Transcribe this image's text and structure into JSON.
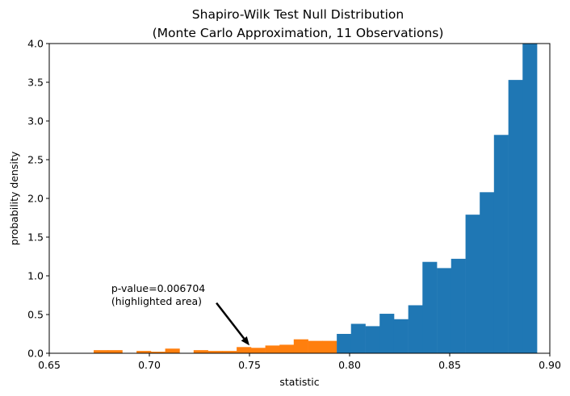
{
  "chart_data": {
    "type": "bar",
    "title": "Shapiro-Wilk Test Null Distribution",
    "subtitle": "(Monte Carlo Approximation, 11 Observations)",
    "xlabel": "statistic",
    "ylabel": "probability density",
    "xlim": [
      0.65,
      0.9
    ],
    "ylim": [
      0,
      4.0
    ],
    "xticks": [
      "0.65",
      "0.70",
      "0.75",
      "0.80",
      "0.85",
      "0.90"
    ],
    "yticks": [
      "0.0",
      "0.5",
      "1.0",
      "1.5",
      "2.0",
      "2.5",
      "3.0",
      "3.5",
      "4.0"
    ],
    "grid": false,
    "bin_width": 0.00714,
    "series": [
      {
        "color": "#ff7f0e",
        "bins": [
          {
            "x": 0.6722,
            "y": 0.04
          },
          {
            "x": 0.6793,
            "y": 0.04
          },
          {
            "x": 0.6936,
            "y": 0.03
          },
          {
            "x": 0.7007,
            "y": 0.02
          },
          {
            "x": 0.7079,
            "y": 0.06
          },
          {
            "x": 0.7221,
            "y": 0.04
          },
          {
            "x": 0.7293,
            "y": 0.03
          },
          {
            "x": 0.7364,
            "y": 0.03
          },
          {
            "x": 0.7436,
            "y": 0.08
          },
          {
            "x": 0.7507,
            "y": 0.07
          },
          {
            "x": 0.7579,
            "y": 0.1
          },
          {
            "x": 0.765,
            "y": 0.11
          },
          {
            "x": 0.7721,
            "y": 0.18
          },
          {
            "x": 0.7793,
            "y": 0.16
          },
          {
            "x": 0.7864,
            "y": 0.16
          }
        ]
      },
      {
        "color": "#1f77b4",
        "bins": [
          {
            "x": 0.7936,
            "y": 0.25
          },
          {
            "x": 0.8007,
            "y": 0.38
          },
          {
            "x": 0.8079,
            "y": 0.35
          },
          {
            "x": 0.815,
            "y": 0.51
          },
          {
            "x": 0.8221,
            "y": 0.44
          },
          {
            "x": 0.8293,
            "y": 0.62
          },
          {
            "x": 0.8364,
            "y": 1.18
          },
          {
            "x": 0.8436,
            "y": 1.1
          },
          {
            "x": 0.8507,
            "y": 1.22
          },
          {
            "x": 0.8579,
            "y": 1.79
          },
          {
            "x": 0.865,
            "y": 2.08
          },
          {
            "x": 0.8721,
            "y": 2.82
          },
          {
            "x": 0.8793,
            "y": 3.53
          },
          {
            "x": 0.8864,
            "y": 4.0
          }
        ]
      }
    ],
    "annotation": {
      "line1": "p-value=0.006704",
      "line2": "(highlighted area)",
      "text_at": [
        0.681,
        0.79
      ],
      "arrow_tail": [
        0.7335,
        0.65
      ],
      "arrow_head": [
        0.75,
        0.1
      ]
    }
  }
}
